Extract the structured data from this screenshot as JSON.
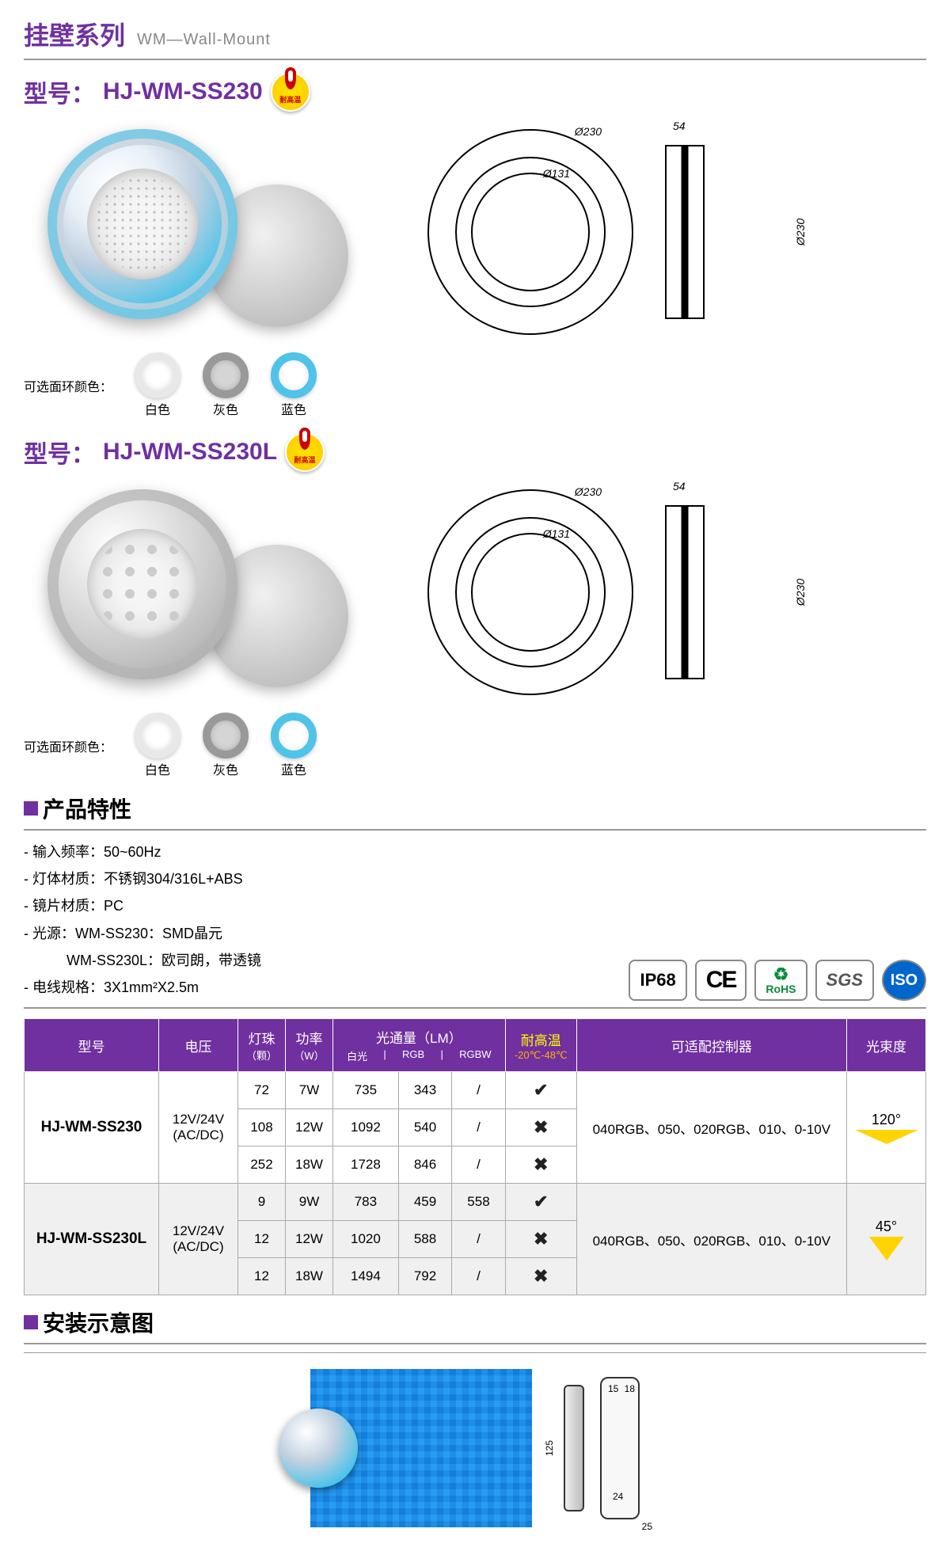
{
  "header": {
    "cn": "挂壁系列",
    "en": "WM—Wall-Mount"
  },
  "models": [
    {
      "label": "型号：",
      "number": "HJ-WM-SS230",
      "heat": "耐高温"
    },
    {
      "label": "型号：",
      "number": "HJ-WM-SS230L",
      "heat": "耐高温"
    }
  ],
  "dims": {
    "outer": "Ø230",
    "inner": "Ø131",
    "depth": "54",
    "height": "Ø230"
  },
  "ring": {
    "label": "可选面环颜色：",
    "white": "白色",
    "gray": "灰色",
    "blue": "蓝色"
  },
  "sections": {
    "features": "产品特性",
    "install": "安装示意图"
  },
  "features": [
    "输入频率：50~60Hz",
    "灯体材质：不锈钢304/316L+ABS",
    "镜片材质：PC",
    "光源：WM-SS230：SMD晶元",
    "　　　WM-SS230L：欧司朗，带透镜",
    "电线规格：3X1mm²X2.5m"
  ],
  "certs": {
    "ip": "IP68",
    "ce": "CE",
    "rohs": "RoHS",
    "sgs": "SGS",
    "iso": "ISO"
  },
  "table": {
    "headers": {
      "model": "型号",
      "voltage": "电压",
      "leds": "灯珠",
      "leds_sub": "（颗）",
      "power": "功率",
      "power_sub": "（W）",
      "lumen": "光通量（LM）",
      "lumen_sub": [
        "白光",
        "RGB",
        "RGBW"
      ],
      "heat": "耐高温",
      "heat_sub": "-20℃-48℃",
      "controller": "可适配控制器",
      "beam": "光束度"
    },
    "groups": [
      {
        "model": "HJ-WM-SS230",
        "voltage": "12V/24V\n(AC/DC)",
        "controller": "040RGB、050、020RGB、010、0-10V",
        "beam": "120°",
        "beam_type": "wide",
        "rows": [
          {
            "leds": "72",
            "power": "7W",
            "white": "735",
            "rgb": "343",
            "rgbw": "/",
            "heat": "yes"
          },
          {
            "leds": "108",
            "power": "12W",
            "white": "1092",
            "rgb": "540",
            "rgbw": "/",
            "heat": "no"
          },
          {
            "leds": "252",
            "power": "18W",
            "white": "1728",
            "rgb": "846",
            "rgbw": "/",
            "heat": "no"
          }
        ]
      },
      {
        "model": "HJ-WM-SS230L",
        "voltage": "12V/24V\n(AC/DC)",
        "controller": "040RGB、050、020RGB、010、0-10V",
        "beam": "45°",
        "beam_type": "narrow",
        "rows": [
          {
            "leds": "9",
            "power": "9W",
            "white": "783",
            "rgb": "459",
            "rgbw": "558",
            "heat": "yes"
          },
          {
            "leds": "12",
            "power": "12W",
            "white": "1020",
            "rgb": "588",
            "rgbw": "/",
            "heat": "no"
          },
          {
            "leds": "12",
            "power": "18W",
            "white": "1494",
            "rgb": "792",
            "rgbw": "/",
            "heat": "no"
          }
        ]
      }
    ]
  },
  "install_dims": {
    "h": "125",
    "w1": "15",
    "w2": "18",
    "w3": "24",
    "w4": "25"
  },
  "colors": {
    "purple": "#7030a0",
    "yellow": "#ffd400",
    "blue": "#4fc3e8"
  }
}
